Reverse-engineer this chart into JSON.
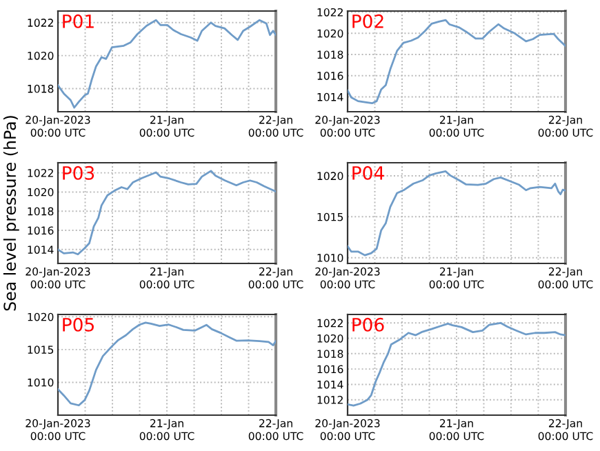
{
  "chart_data": [
    {
      "type": "line",
      "title": "P01",
      "line_style": "solid",
      "ylim": [
        1016.6,
        1022.7
      ],
      "yticks": [
        1018,
        1020,
        1022
      ],
      "xlim": [
        "2023-01-20T00:00",
        "2023-01-22T00:00"
      ],
      "xticks": [
        {
          "value": "2023-01-20T00:00",
          "label": "20-Jan-2023\n00:00 UTC"
        },
        {
          "value": "2023-01-20T06:00",
          "label": null
        },
        {
          "value": "2023-01-20T12:00",
          "label": null
        },
        {
          "value": "2023-01-20T18:00",
          "label": null
        },
        {
          "value": "2023-01-21T00:00",
          "label": "21-Jan\n00:00 UTC"
        },
        {
          "value": "2023-01-21T06:00",
          "label": null
        },
        {
          "value": "2023-01-21T12:00",
          "label": null
        },
        {
          "value": "2023-01-21T18:00",
          "label": null
        },
        {
          "value": "2023-01-22T00:00",
          "label": "22-Jan\n00:00 UTC"
        }
      ],
      "grid": true,
      "series": [
        {
          "color": "#6f9cc8",
          "x": [
            "2023-01-20T00:00",
            "2023-01-20T01:18",
            "2023-01-20T02:48",
            "2023-01-20T03:36",
            "2023-01-20T04:36",
            "2023-01-20T05:54",
            "2023-01-20T06:36",
            "2023-01-20T07:24",
            "2023-01-20T08:24",
            "2023-01-20T09:36",
            "2023-01-20T10:36",
            "2023-01-20T11:54",
            "2023-01-20T14:30",
            "2023-01-20T16:00",
            "2023-01-20T17:30",
            "2023-01-20T19:30",
            "2023-01-20T21:36",
            "2023-01-20T22:36",
            "2023-01-21T00:06",
            "2023-01-21T01:24",
            "2023-01-21T03:06",
            "2023-01-21T05:12",
            "2023-01-21T06:42",
            "2023-01-21T07:42",
            "2023-01-21T09:42",
            "2023-01-21T10:42",
            "2023-01-21T12:42",
            "2023-01-21T14:18",
            "2023-01-21T15:36",
            "2023-01-21T16:48",
            "2023-01-21T18:18",
            "2023-01-21T20:24",
            "2023-01-21T21:54",
            "2023-01-21T22:42",
            "2023-01-21T23:24",
            "2023-01-22T00:00"
          ],
          "values": [
            1018.2,
            1017.7,
            1017.3,
            1016.85,
            1017.2,
            1017.6,
            1017.7,
            1018.5,
            1019.35,
            1019.9,
            1019.8,
            1020.5,
            1020.6,
            1020.8,
            1021.3,
            1021.8,
            1022.15,
            1021.85,
            1021.85,
            1021.55,
            1021.3,
            1021.1,
            1020.9,
            1021.5,
            1022.0,
            1021.8,
            1021.65,
            1021.25,
            1020.95,
            1021.5,
            1021.75,
            1022.15,
            1021.95,
            1021.25,
            1021.5,
            1021.25
          ]
        }
      ]
    },
    {
      "type": "line",
      "title": "P02",
      "ylim": [
        1012.6,
        1022.1
      ],
      "yticks": [
        1014,
        1016,
        1018,
        1020,
        1022
      ],
      "xlim": [
        "2023-01-20T00:00",
        "2023-01-22T00:00"
      ],
      "xticks": [
        {
          "value": "2023-01-20T00:00",
          "label": "20-Jan-2023\n00:00 UTC"
        },
        {
          "value": "2023-01-20T06:00",
          "label": null
        },
        {
          "value": "2023-01-20T12:00",
          "label": null
        },
        {
          "value": "2023-01-20T18:00",
          "label": null
        },
        {
          "value": "2023-01-21T00:00",
          "label": "21-Jan\n00:00 UTC"
        },
        {
          "value": "2023-01-21T06:00",
          "label": null
        },
        {
          "value": "2023-01-21T12:00",
          "label": null
        },
        {
          "value": "2023-01-21T18:00",
          "label": null
        },
        {
          "value": "2023-01-22T00:00",
          "label": "22-Jan\n00:00 UTC"
        }
      ],
      "grid": true,
      "line_style": "solid",
      "series": [
        {
          "color": "#6f9cc8",
          "x": [
            "2023-01-20T00:00",
            "2023-01-20T00:48",
            "2023-01-20T02:18",
            "2023-01-20T03:48",
            "2023-01-20T05:24",
            "2023-01-20T06:24",
            "2023-01-20T07:24",
            "2023-01-20T08:24",
            "2023-01-20T09:24",
            "2023-01-20T10:54",
            "2023-01-20T12:18",
            "2023-01-20T14:00",
            "2023-01-20T15:30",
            "2023-01-20T17:00",
            "2023-01-20T18:30",
            "2023-01-20T20:06",
            "2023-01-20T21:36",
            "2023-01-20T22:24",
            "2023-01-21T00:36",
            "2023-01-21T02:06",
            "2023-01-21T04:12",
            "2023-01-21T05:42",
            "2023-01-21T07:12",
            "2023-01-21T09:12",
            "2023-01-21T10:30",
            "2023-01-21T12:48",
            "2023-01-21T15:18",
            "2023-01-21T16:48",
            "2023-01-21T18:18",
            "2023-01-21T19:48",
            "2023-01-21T21:24",
            "2023-01-21T22:24",
            "2023-01-22T00:00"
          ],
          "values": [
            1014.6,
            1013.95,
            1013.6,
            1013.5,
            1013.4,
            1013.6,
            1014.7,
            1015.1,
            1016.6,
            1018.35,
            1019.1,
            1019.3,
            1019.6,
            1020.2,
            1020.9,
            1021.1,
            1021.25,
            1020.85,
            1020.55,
            1020.15,
            1019.5,
            1019.5,
            1020.15,
            1020.85,
            1020.45,
            1020.0,
            1019.25,
            1019.45,
            1019.85,
            1019.9,
            1019.95,
            1019.45,
            1018.8
          ]
        }
      ]
    },
    {
      "type": "line",
      "title": "P03",
      "ylabel": "Sea level pressure (hPa)",
      "ylim": [
        1012.55,
        1023.05
      ],
      "yticks": [
        1014,
        1016,
        1018,
        1020,
        1022
      ],
      "xlim": [
        "2023-01-20T00:00",
        "2023-01-22T00:00"
      ],
      "xticks": [
        {
          "value": "2023-01-20T00:00",
          "label": "20-Jan-2023\n00:00 UTC"
        },
        {
          "value": "2023-01-20T06:00",
          "label": null
        },
        {
          "value": "2023-01-20T12:00",
          "label": null
        },
        {
          "value": "2023-01-20T18:00",
          "label": null
        },
        {
          "value": "2023-01-21T00:00",
          "label": "21-Jan\n00:00 UTC"
        },
        {
          "value": "2023-01-21T06:00",
          "label": null
        },
        {
          "value": "2023-01-21T12:00",
          "label": null
        },
        {
          "value": "2023-01-21T18:00",
          "label": null
        },
        {
          "value": "2023-01-22T00:00",
          "label": "22-Jan\n00:00 UTC"
        }
      ],
      "grid": true,
      "line_style": "solid",
      "series": [
        {
          "color": "#6f9cc8",
          "x": [
            "2023-01-20T00:00",
            "2023-01-20T01:18",
            "2023-01-20T03:18",
            "2023-01-20T04:24",
            "2023-01-20T05:54",
            "2023-01-20T06:54",
            "2023-01-20T07:54",
            "2023-01-20T08:54",
            "2023-01-20T09:36",
            "2023-01-20T10:54",
            "2023-01-20T12:30",
            "2023-01-20T14:00",
            "2023-01-20T15:18",
            "2023-01-20T16:30",
            "2023-01-20T18:30",
            "2023-01-20T20:06",
            "2023-01-20T21:36",
            "2023-01-20T22:36",
            "2023-01-21T00:36",
            "2023-01-21T03:06",
            "2023-01-21T04:42",
            "2023-01-21T06:30",
            "2023-01-21T07:42",
            "2023-01-21T09:42",
            "2023-01-21T10:42",
            "2023-01-21T12:48",
            "2023-01-21T15:18",
            "2023-01-21T16:48",
            "2023-01-21T18:18",
            "2023-01-21T19:48",
            "2023-01-21T21:24",
            "2023-01-22T00:00"
          ],
          "values": [
            1014.0,
            1013.6,
            1013.7,
            1013.5,
            1014.15,
            1014.65,
            1016.4,
            1017.3,
            1018.6,
            1019.65,
            1020.15,
            1020.5,
            1020.3,
            1021.0,
            1021.45,
            1021.75,
            1022.05,
            1021.6,
            1021.4,
            1021.0,
            1020.8,
            1020.85,
            1021.6,
            1022.2,
            1021.7,
            1021.2,
            1020.7,
            1021.0,
            1021.2,
            1021.0,
            1020.6,
            1020.05
          ]
        }
      ]
    },
    {
      "type": "line",
      "title": "P04",
      "ylim": [
        1009.3,
        1021.6
      ],
      "yticks": [
        1010,
        1015,
        1020
      ],
      "xlim": [
        "2023-01-20T00:00",
        "2023-01-22T00:00"
      ],
      "xticks": [
        {
          "value": "2023-01-20T00:00",
          "label": "20-Jan-2023\n00:00 UTC"
        },
        {
          "value": "2023-01-20T06:00",
          "label": null
        },
        {
          "value": "2023-01-20T12:00",
          "label": null
        },
        {
          "value": "2023-01-20T18:00",
          "label": null
        },
        {
          "value": "2023-01-21T00:00",
          "label": "21-Jan\n00:00 UTC"
        },
        {
          "value": "2023-01-21T06:00",
          "label": null
        },
        {
          "value": "2023-01-21T12:00",
          "label": null
        },
        {
          "value": "2023-01-21T18:00",
          "label": null
        },
        {
          "value": "2023-01-22T00:00",
          "label": "22-Jan\n00:00 UTC"
        }
      ],
      "grid": true,
      "line_style": "solid",
      "series": [
        {
          "color": "#6f9cc8",
          "x": [
            "2023-01-20T00:00",
            "2023-01-20T00:48",
            "2023-01-20T02:18",
            "2023-01-20T03:48",
            "2023-01-20T05:12",
            "2023-01-20T06:24",
            "2023-01-20T07:24",
            "2023-01-20T08:24",
            "2023-01-20T09:24",
            "2023-01-20T10:54",
            "2023-01-20T12:30",
            "2023-01-20T14:30",
            "2023-01-20T16:30",
            "2023-01-20T18:00",
            "2023-01-20T19:30",
            "2023-01-20T21:36",
            "2023-01-20T22:36",
            "2023-01-21T00:36",
            "2023-01-21T02:06",
            "2023-01-21T04:42",
            "2023-01-21T06:30",
            "2023-01-21T08:12",
            "2023-01-21T09:42",
            "2023-01-21T11:48",
            "2023-01-21T13:48",
            "2023-01-21T15:18",
            "2023-01-21T16:18",
            "2023-01-21T18:18",
            "2023-01-21T20:54",
            "2023-01-21T21:42",
            "2023-01-21T22:24",
            "2023-01-21T22:54",
            "2023-01-21T23:24",
            "2023-01-22T00:00"
          ],
          "values": [
            1011.4,
            1010.75,
            1010.75,
            1010.3,
            1010.55,
            1011.1,
            1013.35,
            1014.2,
            1016.2,
            1017.9,
            1018.3,
            1019.05,
            1019.45,
            1020.05,
            1020.3,
            1020.55,
            1020.05,
            1019.45,
            1018.95,
            1018.9,
            1019.05,
            1019.6,
            1019.8,
            1019.35,
            1018.9,
            1018.25,
            1018.5,
            1018.65,
            1018.5,
            1019.05,
            1018.1,
            1017.75,
            1018.3,
            1018.2
          ]
        }
      ]
    },
    {
      "type": "line",
      "title": "P05",
      "ylim": [
        1005.0,
        1020.35
      ],
      "yticks": [
        1010,
        1015,
        1020
      ],
      "xlim": [
        "2023-01-20T00:00",
        "2023-01-22T00:00"
      ],
      "xticks": [
        {
          "value": "2023-01-20T00:00",
          "label": "20-Jan-2023\n00:00 UTC"
        },
        {
          "value": "2023-01-20T06:00",
          "label": null
        },
        {
          "value": "2023-01-20T12:00",
          "label": null
        },
        {
          "value": "2023-01-20T18:00",
          "label": null
        },
        {
          "value": "2023-01-21T00:00",
          "label": "21-Jan\n00:00 UTC"
        },
        {
          "value": "2023-01-21T06:00",
          "label": null
        },
        {
          "value": "2023-01-21T12:00",
          "label": null
        },
        {
          "value": "2023-01-21T18:00",
          "label": null
        },
        {
          "value": "2023-01-22T00:00",
          "label": "22-Jan\n00:00 UTC"
        }
      ],
      "grid": true,
      "line_style": "solid",
      "series": [
        {
          "color": "#6f9cc8",
          "x": [
            "2023-01-20T00:00",
            "2023-01-20T01:18",
            "2023-01-20T02:48",
            "2023-01-20T04:36",
            "2023-01-20T05:54",
            "2023-01-20T06:54",
            "2023-01-20T08:24",
            "2023-01-20T09:54",
            "2023-01-20T11:54",
            "2023-01-20T13:18",
            "2023-01-20T15:00",
            "2023-01-20T16:30",
            "2023-01-20T18:00",
            "2023-01-20T19:18",
            "2023-01-20T20:30",
            "2023-01-20T22:24",
            "2023-01-21T00:24",
            "2023-01-21T02:06",
            "2023-01-21T03:36",
            "2023-01-21T06:12",
            "2023-01-21T07:42",
            "2023-01-21T08:42",
            "2023-01-21T09:54",
            "2023-01-21T11:48",
            "2023-01-21T13:48",
            "2023-01-21T15:18",
            "2023-01-21T17:48",
            "2023-01-21T20:24",
            "2023-01-21T22:24",
            "2023-01-21T23:24",
            "2023-01-22T00:00"
          ],
          "values": [
            1008.95,
            1008.0,
            1006.8,
            1006.5,
            1007.3,
            1008.75,
            1011.9,
            1014.0,
            1015.5,
            1016.45,
            1017.2,
            1018.1,
            1018.8,
            1019.1,
            1018.95,
            1018.6,
            1018.8,
            1018.4,
            1018.0,
            1017.9,
            1018.4,
            1018.75,
            1018.1,
            1017.55,
            1016.85,
            1016.35,
            1016.4,
            1016.3,
            1016.15,
            1015.65,
            1016.3
          ]
        }
      ]
    },
    {
      "type": "line",
      "title": "P06",
      "ylim": [
        1010.0,
        1023.1
      ],
      "yticks": [
        1012,
        1014,
        1016,
        1018,
        1020,
        1022
      ],
      "xlim": [
        "2023-01-20T00:00",
        "2023-01-22T00:00"
      ],
      "xticks": [
        {
          "value": "2023-01-20T00:00",
          "label": "20-Jan-2023\n00:00 UTC"
        },
        {
          "value": "2023-01-20T06:00",
          "label": null
        },
        {
          "value": "2023-01-20T12:00",
          "label": null
        },
        {
          "value": "2023-01-20T18:00",
          "label": null
        },
        {
          "value": "2023-01-21T00:00",
          "label": "21-Jan\n00:00 UTC"
        },
        {
          "value": "2023-01-21T06:00",
          "label": null
        },
        {
          "value": "2023-01-21T12:00",
          "label": null
        },
        {
          "value": "2023-01-21T18:00",
          "label": null
        },
        {
          "value": "2023-01-22T00:00",
          "label": "22-Jan\n00:00 UTC"
        }
      ],
      "grid": true,
      "line_style": "solid",
      "series": [
        {
          "color": "#6f9cc8",
          "x": [
            "2023-01-20T00:00",
            "2023-01-20T01:18",
            "2023-01-20T02:48",
            "2023-01-20T04:24",
            "2023-01-20T05:12",
            "2023-01-20T06:12",
            "2023-01-20T07:06",
            "2023-01-20T07:54",
            "2023-01-20T08:54",
            "2023-01-20T09:36",
            "2023-01-20T11:24",
            "2023-01-20T13:24",
            "2023-01-20T15:00",
            "2023-01-20T16:30",
            "2023-01-20T18:30",
            "2023-01-20T20:30",
            "2023-01-20T22:06",
            "2023-01-20T23:06",
            "2023-01-21T01:06",
            "2023-01-21T03:36",
            "2023-01-21T05:42",
            "2023-01-21T07:12",
            "2023-01-21T09:42",
            "2023-01-21T11:12",
            "2023-01-21T13:12",
            "2023-01-21T15:18",
            "2023-01-21T17:18",
            "2023-01-21T19:18",
            "2023-01-21T21:42",
            "2023-01-21T22:54",
            "2023-01-22T00:00"
          ],
          "values": [
            1011.4,
            1011.25,
            1011.5,
            1012.0,
            1012.6,
            1014.4,
            1015.6,
            1016.8,
            1018.0,
            1019.2,
            1019.8,
            1020.7,
            1020.4,
            1020.85,
            1021.2,
            1021.6,
            1021.9,
            1021.7,
            1021.45,
            1020.8,
            1021.0,
            1021.75,
            1022.0,
            1021.5,
            1021.0,
            1020.5,
            1020.7,
            1020.7,
            1020.8,
            1020.5,
            1020.4
          ]
        }
      ]
    }
  ]
}
